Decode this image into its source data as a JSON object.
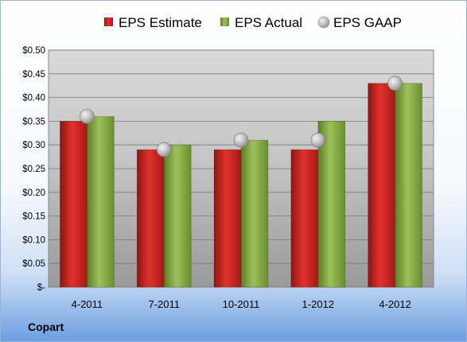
{
  "chart_data": {
    "type": "bar",
    "categories": [
      "4-2011",
      "7-2011",
      "10-2011",
      "1-2012",
      "4-2012"
    ],
    "series": [
      {
        "name": "EPS Estimate",
        "kind": "bar",
        "color": "#c9211e",
        "values": [
          0.35,
          0.29,
          0.29,
          0.29,
          0.43
        ]
      },
      {
        "name": "EPS Actual",
        "kind": "bar",
        "color": "#7fa33c",
        "values": [
          0.36,
          0.3,
          0.31,
          0.35,
          0.43
        ]
      },
      {
        "name": "EPS GAAP",
        "kind": "marker",
        "color": "#b8b8b8",
        "values": [
          0.36,
          0.29,
          0.31,
          0.31,
          0.43
        ]
      }
    ],
    "ylim": [
      0,
      0.5
    ],
    "yticks": [
      0,
      0.05,
      0.1,
      0.15,
      0.2,
      0.25,
      0.3,
      0.35,
      0.4,
      0.45,
      0.5
    ],
    "ytick_labels": [
      "$-",
      "$0.05",
      "$0.10",
      "$0.15",
      "$0.20",
      "$0.25",
      "$0.30",
      "$0.35",
      "$0.40",
      "$0.45",
      "$0.50"
    ],
    "grid": true,
    "legend": "top",
    "title": "",
    "xlabel": "",
    "ylabel": ""
  },
  "footer": {
    "company": "Copart"
  }
}
